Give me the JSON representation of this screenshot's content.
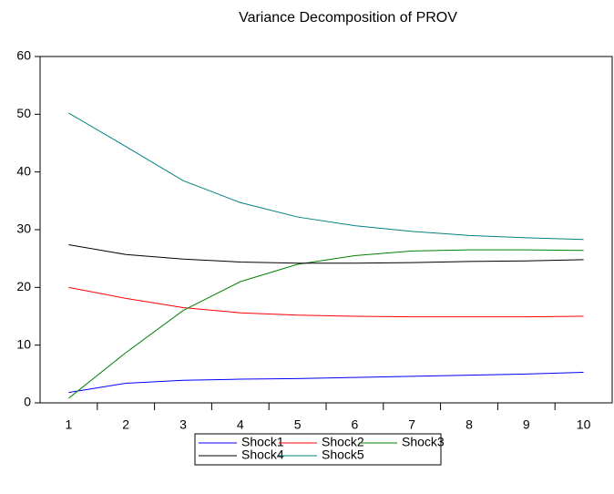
{
  "chart_data": {
    "type": "line",
    "title": "Variance Decomposition of PROV",
    "categories": [
      "1",
      "2",
      "3",
      "4",
      "5",
      "6",
      "7",
      "8",
      "9",
      "10"
    ],
    "series": [
      {
        "name": "Shock1",
        "color": "#0000ff",
        "values": [
          1.8,
          3.4,
          3.9,
          4.1,
          4.2,
          4.4,
          4.6,
          4.8,
          5.0,
          5.3
        ]
      },
      {
        "name": "Shock2",
        "color": "#ff0000",
        "values": [
          20.0,
          18.1,
          16.5,
          15.6,
          15.2,
          15.0,
          14.9,
          14.9,
          14.9,
          15.0
        ]
      },
      {
        "name": "Shock3",
        "color": "#008000",
        "values": [
          0.8,
          8.7,
          16.0,
          21.0,
          24.0,
          25.5,
          26.3,
          26.5,
          26.5,
          26.4
        ]
      },
      {
        "name": "Shock4",
        "color": "#000000",
        "values": [
          27.4,
          25.7,
          24.9,
          24.4,
          24.2,
          24.2,
          24.3,
          24.5,
          24.6,
          24.8
        ]
      },
      {
        "name": "Shock5",
        "color": "#008080",
        "values": [
          50.2,
          44.4,
          38.5,
          34.7,
          32.2,
          30.7,
          29.7,
          29.0,
          28.6,
          28.3
        ]
      }
    ],
    "ylim": [
      0,
      60
    ],
    "yticks": [
      0,
      10,
      20,
      30,
      40,
      50,
      60
    ],
    "grid": false,
    "legend": "bottom"
  }
}
